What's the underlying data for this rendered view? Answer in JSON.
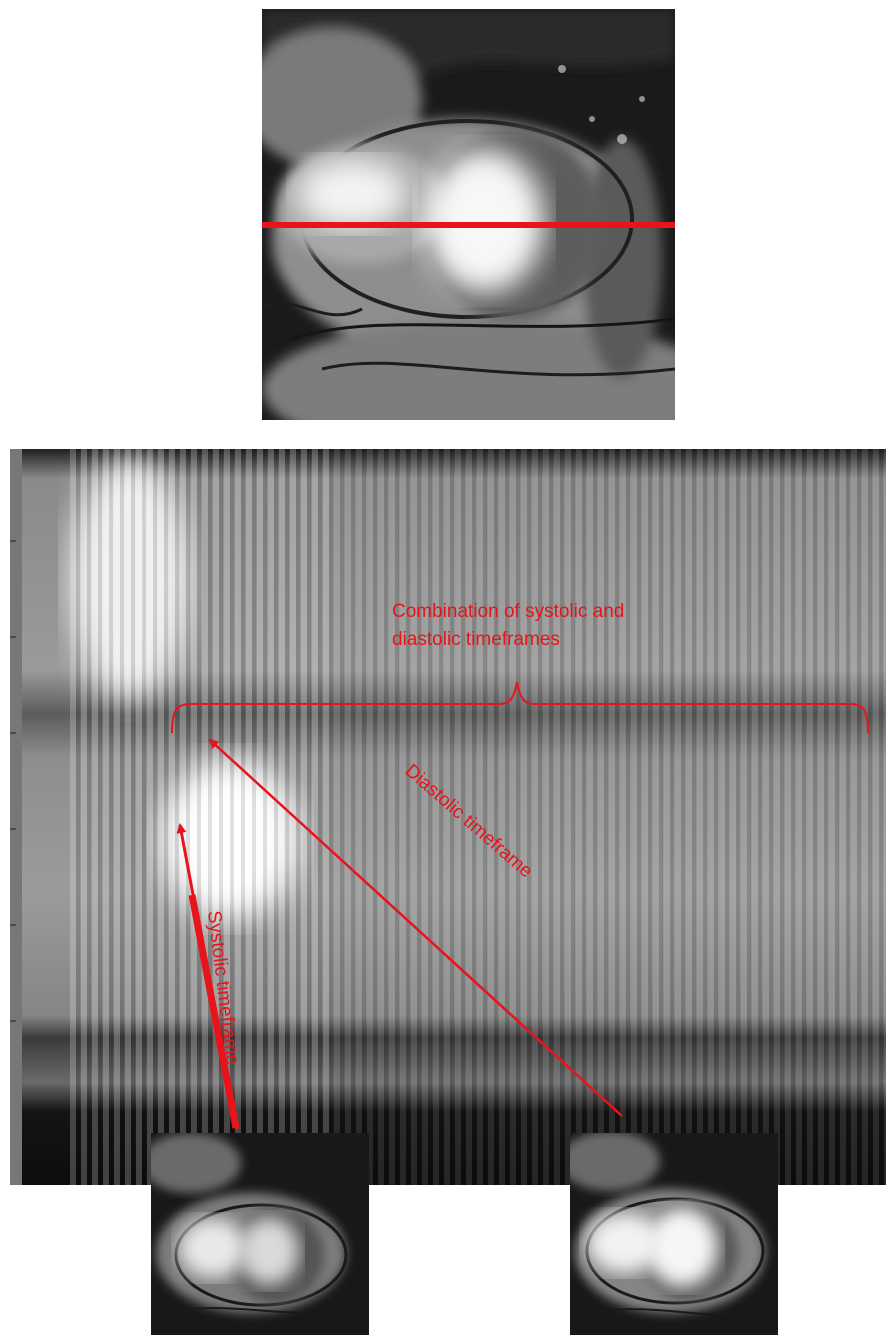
{
  "annotations": {
    "combination_line1": "Combination of systolic and",
    "combination_line2": "diastolic timeframes",
    "systolic": "Systolic timeframe",
    "diastolic": "Diastolic timeframe"
  },
  "colors": {
    "annotation": "#e8141b",
    "background": "#ffffff",
    "dark": "#0a0a0a",
    "myocardium": "#5a5a5a",
    "blood_pool": "#f2f2f2"
  },
  "icons": {
    "line_marker": "horizontal-line-marker",
    "arrow": "arrow-icon",
    "brace": "curly-brace"
  }
}
